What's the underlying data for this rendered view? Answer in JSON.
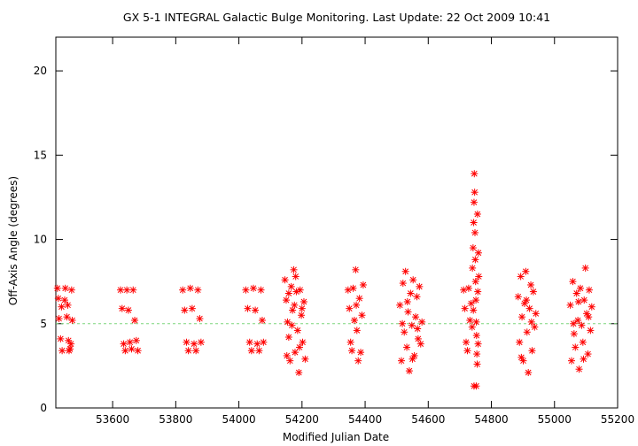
{
  "chart_data": {
    "type": "scatter",
    "title": "GX 5-1   INTEGRAL Galactic Bulge Monitoring.  Last Update: 22 Oct 2009 10:41",
    "xlabel": "Modified Julian Date",
    "ylabel": "Off-Axis Angle (degrees)",
    "xlim": [
      53420,
      55200
    ],
    "ylim": [
      0,
      22
    ],
    "x_ticks": [
      53600,
      53800,
      54000,
      54200,
      54400,
      54600,
      54800,
      55000,
      55200
    ],
    "y_ticks": [
      0,
      5,
      10,
      15,
      20
    ],
    "grid": false,
    "legend": "none",
    "marker": "star",
    "series_color": "#ff0000",
    "reference_line": {
      "y": 5,
      "style": "dashed",
      "color": "#7cd67c"
    },
    "series": [
      {
        "points": [
          [
            53425,
            7.1
          ],
          [
            53430,
            5.3
          ],
          [
            53435,
            4.1
          ],
          [
            53440,
            3.4
          ],
          [
            53428,
            6.5
          ],
          [
            53438,
            6.0
          ],
          [
            53450,
            7.1
          ],
          [
            53455,
            5.4
          ],
          [
            53460,
            4.0
          ],
          [
            53465,
            3.5
          ],
          [
            53448,
            6.4
          ],
          [
            53458,
            6.1
          ],
          [
            53470,
            7.0
          ],
          [
            53472,
            5.2
          ],
          [
            53468,
            3.8
          ],
          [
            53462,
            3.4
          ],
          [
            53625,
            7.0
          ],
          [
            53630,
            5.9
          ],
          [
            53635,
            3.8
          ],
          [
            53640,
            3.4
          ],
          [
            53645,
            7.0
          ],
          [
            53650,
            5.8
          ],
          [
            53655,
            3.9
          ],
          [
            53660,
            3.5
          ],
          [
            53665,
            7.0
          ],
          [
            53670,
            5.2
          ],
          [
            53675,
            4.0
          ],
          [
            53680,
            3.4
          ],
          [
            53822,
            7.0
          ],
          [
            53828,
            5.8
          ],
          [
            53834,
            3.9
          ],
          [
            53840,
            3.4
          ],
          [
            53846,
            7.1
          ],
          [
            53852,
            5.9
          ],
          [
            53858,
            3.8
          ],
          [
            53864,
            3.4
          ],
          [
            53870,
            7.0
          ],
          [
            53876,
            5.3
          ],
          [
            53880,
            3.9
          ],
          [
            54022,
            7.0
          ],
          [
            54028,
            5.9
          ],
          [
            54034,
            3.9
          ],
          [
            54040,
            3.4
          ],
          [
            54046,
            7.1
          ],
          [
            54052,
            5.8
          ],
          [
            54058,
            3.8
          ],
          [
            54064,
            3.4
          ],
          [
            54070,
            7.0
          ],
          [
            54074,
            5.2
          ],
          [
            54078,
            3.9
          ],
          [
            54146,
            7.6
          ],
          [
            54150,
            6.4
          ],
          [
            54154,
            5.1
          ],
          [
            54158,
            4.2
          ],
          [
            54162,
            2.8
          ],
          [
            54166,
            7.2
          ],
          [
            54170,
            5.8
          ],
          [
            54174,
            8.2
          ],
          [
            54178,
            3.3
          ],
          [
            54182,
            6.9
          ],
          [
            54186,
            4.6
          ],
          [
            54190,
            2.1
          ],
          [
            54194,
            7.0
          ],
          [
            54198,
            5.5
          ],
          [
            54202,
            3.9
          ],
          [
            54206,
            6.3
          ],
          [
            54210,
            2.9
          ],
          [
            54158,
            6.8
          ],
          [
            54168,
            4.9
          ],
          [
            54180,
            7.8
          ],
          [
            54192,
            3.6
          ],
          [
            54200,
            5.9
          ],
          [
            54152,
            3.1
          ],
          [
            54176,
            6.1
          ],
          [
            54346,
            7.0
          ],
          [
            54350,
            5.9
          ],
          [
            54354,
            3.9
          ],
          [
            54358,
            3.4
          ],
          [
            54362,
            7.1
          ],
          [
            54366,
            5.2
          ],
          [
            54370,
            8.2
          ],
          [
            54374,
            4.6
          ],
          [
            54378,
            2.8
          ],
          [
            54382,
            6.5
          ],
          [
            54386,
            3.3
          ],
          [
            54390,
            5.5
          ],
          [
            54394,
            7.3
          ],
          [
            54372,
            6.1
          ],
          [
            54510,
            6.1
          ],
          [
            54515,
            2.8
          ],
          [
            54520,
            7.4
          ],
          [
            54524,
            4.5
          ],
          [
            54528,
            8.1
          ],
          [
            54532,
            3.6
          ],
          [
            54536,
            5.7
          ],
          [
            54540,
            2.2
          ],
          [
            54544,
            6.8
          ],
          [
            54548,
            4.9
          ],
          [
            54552,
            7.6
          ],
          [
            54556,
            3.1
          ],
          [
            54560,
            5.4
          ],
          [
            54564,
            6.6
          ],
          [
            54568,
            4.1
          ],
          [
            54572,
            7.2
          ],
          [
            54576,
            3.8
          ],
          [
            54580,
            5.1
          ],
          [
            54518,
            5.0
          ],
          [
            54534,
            6.3
          ],
          [
            54550,
            2.9
          ],
          [
            54566,
            4.7
          ],
          [
            54712,
            7.0
          ],
          [
            54716,
            5.9
          ],
          [
            54720,
            3.9
          ],
          [
            54724,
            3.4
          ],
          [
            54728,
            7.1
          ],
          [
            54732,
            5.2
          ],
          [
            54736,
            6.2
          ],
          [
            54740,
            8.3
          ],
          [
            54742,
            9.5
          ],
          [
            54744,
            11.0
          ],
          [
            54745,
            12.2
          ],
          [
            54746,
            13.9
          ],
          [
            54747,
            12.8
          ],
          [
            54748,
            10.4
          ],
          [
            54749,
            8.8
          ],
          [
            54750,
            7.5
          ],
          [
            54751,
            6.4
          ],
          [
            54752,
            5.1
          ],
          [
            54753,
            4.3
          ],
          [
            54754,
            3.2
          ],
          [
            54755,
            2.6
          ],
          [
            54745,
            1.3
          ],
          [
            54752,
            1.3
          ],
          [
            54757,
            6.9
          ],
          [
            54759,
            9.2
          ],
          [
            54760,
            7.8
          ],
          [
            54756,
            11.5
          ],
          [
            54743,
            5.8
          ],
          [
            54739,
            4.8
          ],
          [
            54758,
            3.8
          ],
          [
            54885,
            6.6
          ],
          [
            54889,
            3.9
          ],
          [
            54893,
            7.8
          ],
          [
            54897,
            5.4
          ],
          [
            54901,
            2.8
          ],
          [
            54905,
            6.2
          ],
          [
            54909,
            8.1
          ],
          [
            54913,
            4.5
          ],
          [
            54917,
            2.1
          ],
          [
            54921,
            5.9
          ],
          [
            54925,
            7.3
          ],
          [
            54929,
            3.4
          ],
          [
            54933,
            6.9
          ],
          [
            54937,
            4.8
          ],
          [
            54941,
            5.6
          ],
          [
            54895,
            3.0
          ],
          [
            54911,
            6.4
          ],
          [
            54927,
            5.1
          ],
          [
            55050,
            6.1
          ],
          [
            55054,
            2.8
          ],
          [
            55058,
            7.5
          ],
          [
            55062,
            4.4
          ],
          [
            55066,
            3.6
          ],
          [
            55070,
            6.8
          ],
          [
            55074,
            5.2
          ],
          [
            55078,
            2.3
          ],
          [
            55082,
            7.1
          ],
          [
            55086,
            4.9
          ],
          [
            55090,
            3.9
          ],
          [
            55094,
            6.4
          ],
          [
            55098,
            8.3
          ],
          [
            55102,
            5.6
          ],
          [
            55106,
            3.2
          ],
          [
            55110,
            7.0
          ],
          [
            55114,
            4.6
          ],
          [
            55118,
            6.0
          ],
          [
            55060,
            5.0
          ],
          [
            55076,
            6.3
          ],
          [
            55092,
            2.9
          ],
          [
            55108,
            5.4
          ]
        ]
      }
    ]
  }
}
